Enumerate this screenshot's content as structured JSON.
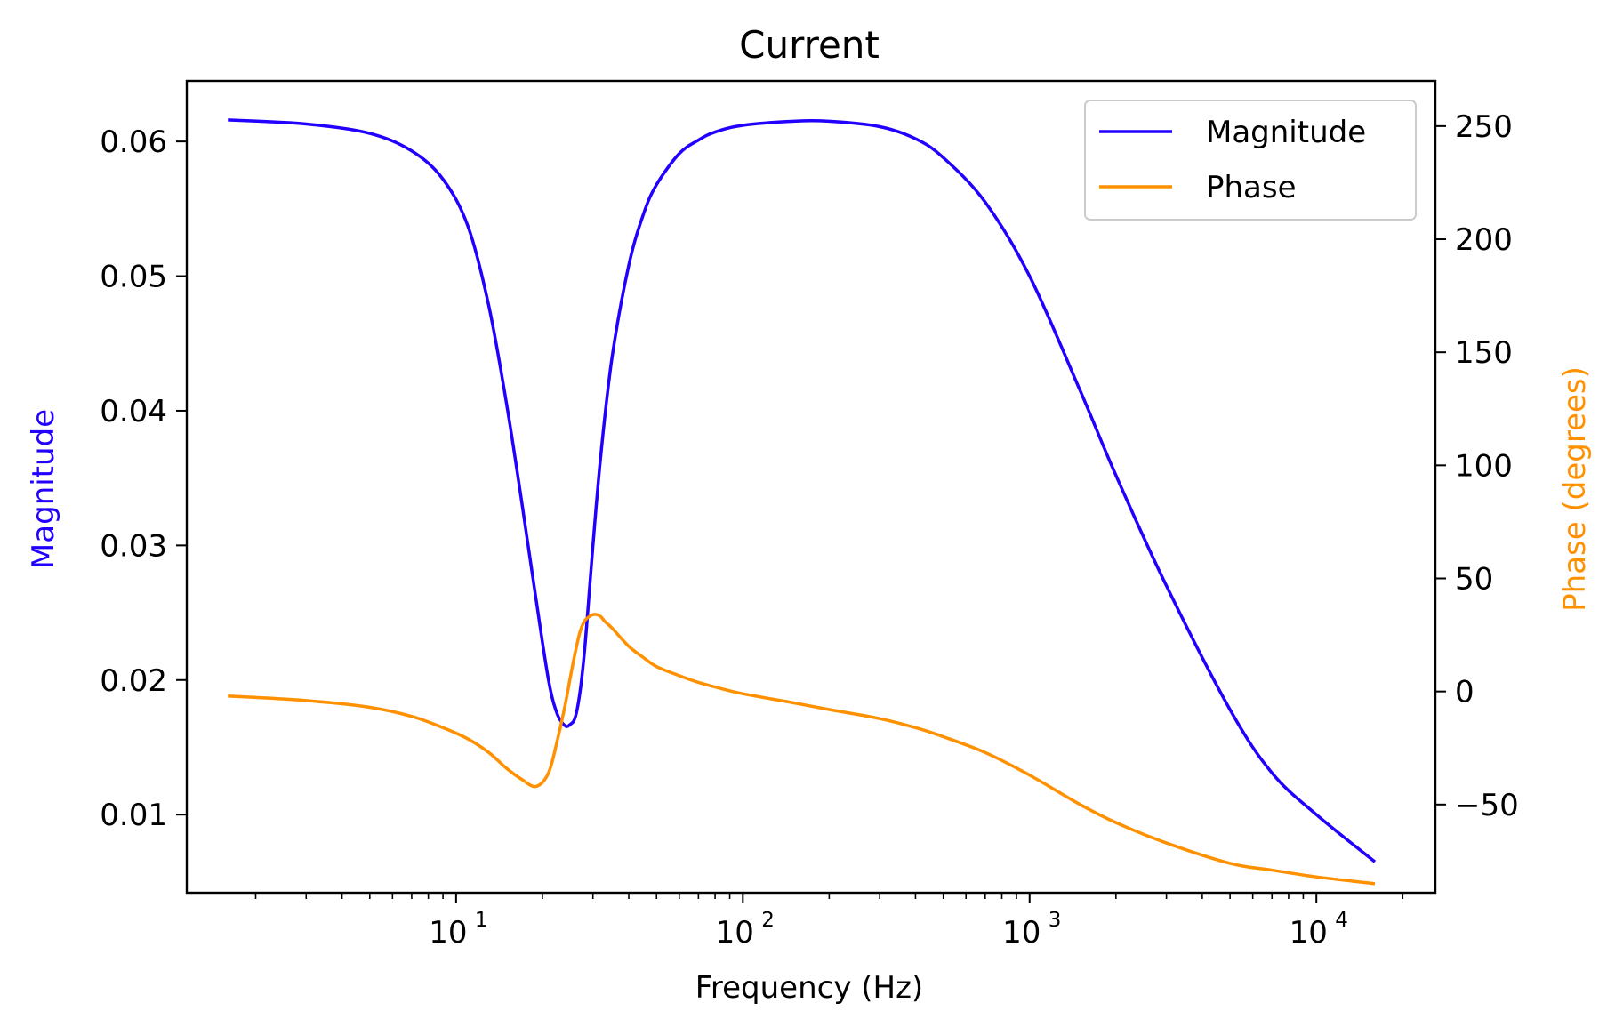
{
  "chart_data": {
    "type": "line",
    "title": "Current",
    "xlabel": "Frequency (Hz)",
    "ylabel_left": "Magnitude",
    "ylabel_right": "Phase (degrees)",
    "x_scale": "log",
    "xlim": [
      1.15,
      26000
    ],
    "ylim_left": [
      0.0042,
      0.0645
    ],
    "ylim_right": [
      -89,
      270
    ],
    "x_ticks": [
      {
        "base": "10",
        "exp": "1",
        "value": 10
      },
      {
        "base": "10",
        "exp": "2",
        "value": 100
      },
      {
        "base": "10",
        "exp": "3",
        "value": 1000
      },
      {
        "base": "10",
        "exp": "4",
        "value": 10000
      }
    ],
    "y_ticks_left": [
      {
        "label": "0.01",
        "value": 0.01
      },
      {
        "label": "0.02",
        "value": 0.02
      },
      {
        "label": "0.03",
        "value": 0.03
      },
      {
        "label": "0.04",
        "value": 0.04
      },
      {
        "label": "0.05",
        "value": 0.05
      },
      {
        "label": "0.06",
        "value": 0.06
      }
    ],
    "y_ticks_right": [
      {
        "label": "−50",
        "value": -50
      },
      {
        "label": "0",
        "value": 0
      },
      {
        "label": "50",
        "value": 50
      },
      {
        "label": "100",
        "value": 100
      },
      {
        "label": "150",
        "value": 150
      },
      {
        "label": "200",
        "value": 200
      },
      {
        "label": "250",
        "value": 250
      }
    ],
    "legend_position": "top-right",
    "grid": false,
    "series": [
      {
        "name": "Magnitude",
        "axis": "left",
        "color": "#2200ff",
        "x": [
          1.6,
          3,
          5,
          7,
          9,
          11,
          13,
          15,
          17,
          19,
          21,
          22.5,
          24,
          25,
          26,
          27,
          28,
          29,
          30,
          32,
          35,
          40,
          45,
          50,
          60,
          70,
          80,
          100,
          150,
          200,
          300,
          400,
          500,
          700,
          1000,
          1500,
          2000,
          3000,
          5000,
          7000,
          10000,
          16000
        ],
        "values": [
          0.0616,
          0.0613,
          0.0606,
          0.0593,
          0.0572,
          0.0537,
          0.0478,
          0.0405,
          0.033,
          0.026,
          0.02,
          0.0175,
          0.0166,
          0.0167,
          0.0172,
          0.019,
          0.022,
          0.026,
          0.03,
          0.0368,
          0.044,
          0.0508,
          0.0546,
          0.0568,
          0.0591,
          0.0601,
          0.0607,
          0.0612,
          0.0615,
          0.0615,
          0.0611,
          0.0602,
          0.0588,
          0.0555,
          0.05,
          0.0415,
          0.0352,
          0.027,
          0.0178,
          0.0131,
          0.01,
          0.0065
        ]
      },
      {
        "name": "Phase",
        "axis": "right",
        "color": "#ff9100",
        "x": [
          1.6,
          3,
          5,
          7,
          9,
          11,
          13,
          15,
          17,
          19,
          21,
          22.5,
          24,
          25,
          26,
          27,
          28,
          29,
          30,
          31,
          32,
          33,
          35,
          40,
          45,
          50,
          60,
          70,
          80,
          100,
          150,
          200,
          300,
          400,
          500,
          700,
          1000,
          1500,
          2000,
          3000,
          5000,
          7000,
          10000,
          16000
        ],
        "values": [
          -2,
          -4,
          -7,
          -11,
          -16,
          -21,
          -27,
          -34,
          -39,
          -42,
          -36,
          -22,
          -6,
          6,
          17,
          26,
          31,
          33,
          34,
          34,
          33,
          31,
          28,
          20,
          15,
          11,
          7,
          4,
          2,
          -1,
          -5,
          -8,
          -12,
          -16,
          -20,
          -27,
          -37,
          -50,
          -58,
          -67,
          -76,
          -79,
          -82,
          -85
        ]
      }
    ]
  }
}
